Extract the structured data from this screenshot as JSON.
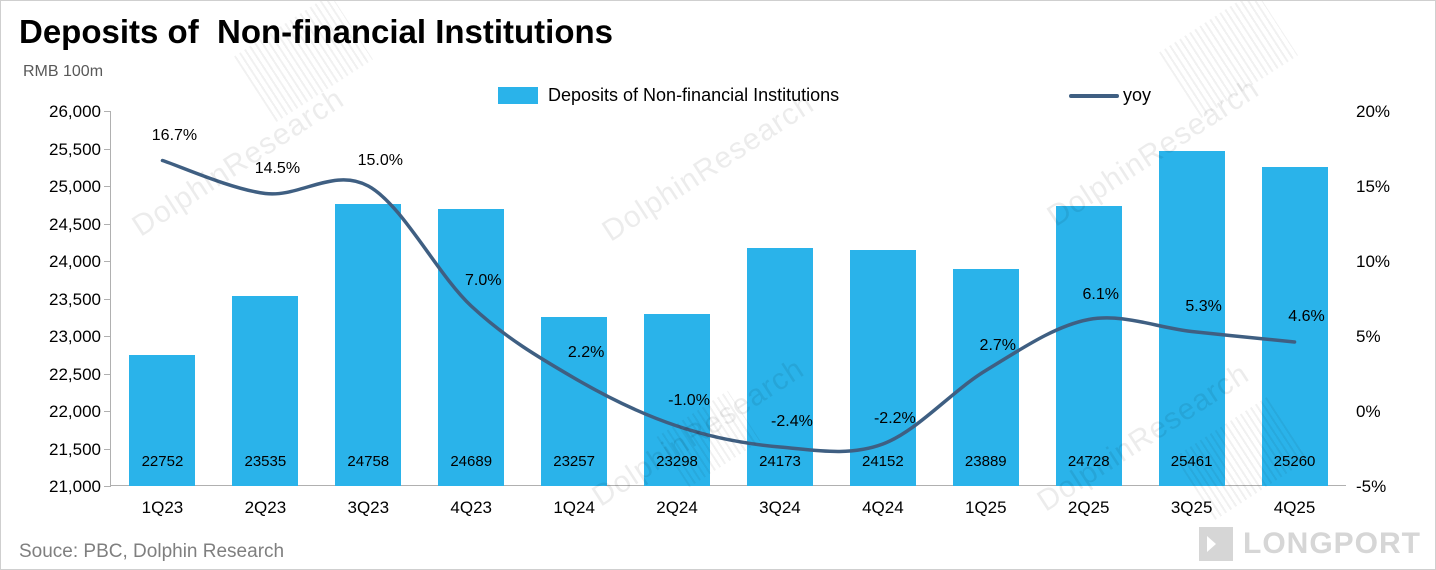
{
  "title": "Deposits of  Non-financial Institutions",
  "unit_label": "RMB 100m",
  "legend": {
    "bars_label": "Deposits of  Non-financial Institutions",
    "line_label": "yoy"
  },
  "source": "Souce: PBC, Dolphin Research",
  "watermark": {
    "text": "DolphinResearch"
  },
  "logo_text": "LONGPORT",
  "colors": {
    "bar": "#2ab3ea",
    "line": "#3f5f82",
    "axis_text": "#000000",
    "source_text": "#7f7f7f"
  },
  "chart_data": {
    "type": "bar",
    "subtype": "bar-line-combo",
    "title": "Deposits of  Non-financial Institutions",
    "ylabel_left": "RMB 100m",
    "legend_position": "top",
    "grid": false,
    "categories": [
      "1Q23",
      "2Q23",
      "3Q23",
      "4Q23",
      "1Q24",
      "2Q24",
      "3Q24",
      "4Q24",
      "1Q25",
      "2Q25",
      "3Q25",
      "4Q25"
    ],
    "series": [
      {
        "name": "Deposits of  Non-financial Institutions",
        "type": "bar",
        "axis": "left",
        "values": [
          22752,
          23535,
          24758,
          24689,
          23257,
          23298,
          24173,
          24152,
          23889,
          24728,
          25461,
          25260
        ],
        "labels": [
          "22752",
          "23535",
          "24758",
          "24689",
          "23257",
          "23298",
          "24173",
          "24152",
          "23889",
          "24728",
          "25461",
          "25260"
        ]
      },
      {
        "name": "yoy",
        "type": "line",
        "axis": "right",
        "values": [
          16.7,
          14.5,
          15.0,
          7.0,
          2.2,
          -1.0,
          -2.4,
          -2.2,
          2.7,
          6.1,
          5.3,
          4.6
        ],
        "labels": [
          "16.7%",
          "14.5%",
          "15.0%",
          "7.0%",
          "2.2%",
          "-1.0%",
          "-2.4%",
          "-2.2%",
          "2.7%",
          "6.1%",
          "5.3%",
          "4.6%"
        ]
      }
    ],
    "left_axis": {
      "min": 21000,
      "max": 26000,
      "step": 500,
      "tick_labels": [
        "26,000",
        "25,500",
        "25,000",
        "24,500",
        "24,000",
        "23,500",
        "23,000",
        "22,500",
        "22,000",
        "21,500",
        "21,000"
      ]
    },
    "right_axis": {
      "min": -5,
      "max": 20,
      "step": 5,
      "tick_labels": [
        "20%",
        "15%",
        "10%",
        "5%",
        "0%",
        "-5%"
      ]
    }
  }
}
